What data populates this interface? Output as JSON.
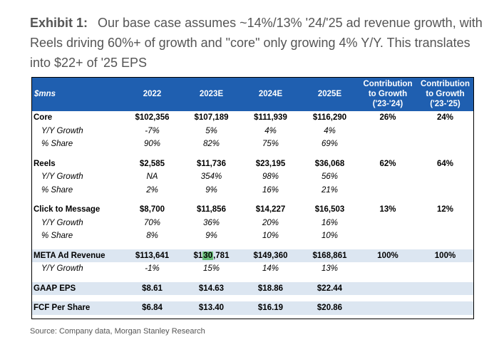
{
  "title": {
    "label": "Exhibit 1:",
    "text": "Our base case assumes ~14%/13% '24/'25 ad revenue growth, with Reels driving 60%+ of growth and \"core\" only growing 4% Y/Y. This translates into $22+ of '25 EPS"
  },
  "table": {
    "headers": [
      "$mns",
      "2022",
      "2023E",
      "2024E",
      "2025E",
      "Contribution to Growth ('23-'24)",
      "Contribution to Growth ('23-'25)"
    ],
    "core": {
      "main": [
        "Core",
        "$102,356",
        "$107,189",
        "$111,939",
        "$116,290",
        "26%",
        "24%"
      ],
      "growth": [
        "Y/Y Growth",
        "-7%",
        "5%",
        "4%",
        "4%"
      ],
      "share": [
        "% Share",
        "90%",
        "82%",
        "75%",
        "69%"
      ]
    },
    "reels": {
      "main": [
        "Reels",
        "$2,585",
        "$11,736",
        "$23,195",
        "$36,068",
        "62%",
        "64%"
      ],
      "growth": [
        "Y/Y Growth",
        "NA",
        "354%",
        "98%",
        "56%"
      ],
      "share": [
        "% Share",
        "2%",
        "9%",
        "16%",
        "21%"
      ]
    },
    "ctm": {
      "main": [
        "Click to Message",
        "$8,700",
        "$11,856",
        "$14,227",
        "$16,503",
        "13%",
        "12%"
      ],
      "growth": [
        "Y/Y Growth",
        "70%",
        "36%",
        "20%",
        "16%"
      ],
      "share": [
        "% Share",
        "8%",
        "9%",
        "10%",
        "10%"
      ]
    },
    "meta": {
      "main": [
        "META Ad Revenue",
        "$113,641",
        "$130,781",
        "$149,360",
        "$168,861",
        "100%",
        "100%"
      ],
      "growth": [
        "Y/Y Growth",
        "-1%",
        "15%",
        "14%",
        "13%"
      ]
    },
    "eps": [
      "GAAP EPS",
      "$8.61",
      "$14.63",
      "$18.86",
      "$22.44"
    ],
    "fcf": [
      "FCF Per Share",
      "$6.84",
      "$13.40",
      "$16.19",
      "$20.86"
    ],
    "highlight_color": "#6abf7a",
    "header_color": "#1f5fb0",
    "shade_color": "#dce6f1"
  },
  "source": "Source: Company data, Morgan Stanley Research"
}
